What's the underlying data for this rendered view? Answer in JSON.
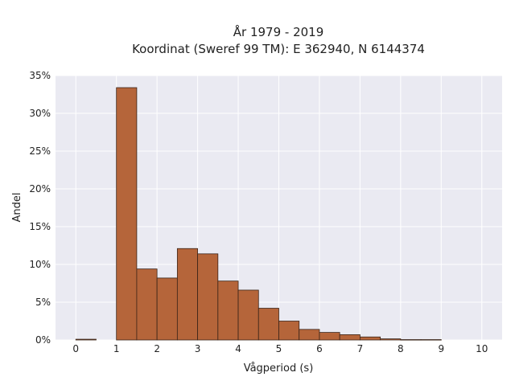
{
  "chart_data": {
    "type": "bar",
    "title_line1": "År 1979 - 2019",
    "title_line2": "Koordinat (Sweref 99 TM): E 362940, N 6144374",
    "xlabel": "Vågperiod (s)",
    "ylabel": "Andel",
    "xlim": [
      -0.5,
      10.5
    ],
    "ylim": [
      0,
      35
    ],
    "x_ticks": [
      0,
      1,
      2,
      3,
      4,
      5,
      6,
      7,
      8,
      9,
      10
    ],
    "y_ticks": [
      0,
      5,
      10,
      15,
      20,
      25,
      30,
      35
    ],
    "y_tick_labels": [
      "0%",
      "5%",
      "10%",
      "15%",
      "20%",
      "25%",
      "30%",
      "35%"
    ],
    "bin_width": 0.5,
    "bins": [
      {
        "x0": 0.0,
        "value": 0.1
      },
      {
        "x0": 0.5,
        "value": 0.0
      },
      {
        "x0": 1.0,
        "value": 33.4
      },
      {
        "x0": 1.5,
        "value": 9.4
      },
      {
        "x0": 2.0,
        "value": 8.2
      },
      {
        "x0": 2.5,
        "value": 12.1
      },
      {
        "x0": 3.0,
        "value": 11.4
      },
      {
        "x0": 3.5,
        "value": 7.8
      },
      {
        "x0": 4.0,
        "value": 6.6
      },
      {
        "x0": 4.5,
        "value": 4.2
      },
      {
        "x0": 5.0,
        "value": 2.5
      },
      {
        "x0": 5.5,
        "value": 1.4
      },
      {
        "x0": 6.0,
        "value": 1.0
      },
      {
        "x0": 6.5,
        "value": 0.7
      },
      {
        "x0": 7.0,
        "value": 0.4
      },
      {
        "x0": 7.5,
        "value": 0.15
      },
      {
        "x0": 8.0,
        "value": 0.05
      },
      {
        "x0": 8.5,
        "value": 0.05
      }
    ],
    "grid": true,
    "colors": {
      "bar_fill": "#b5653a",
      "bar_stroke": "#3a2418",
      "plot_background": "#eaeaf2",
      "grid": "#ffffff"
    }
  }
}
